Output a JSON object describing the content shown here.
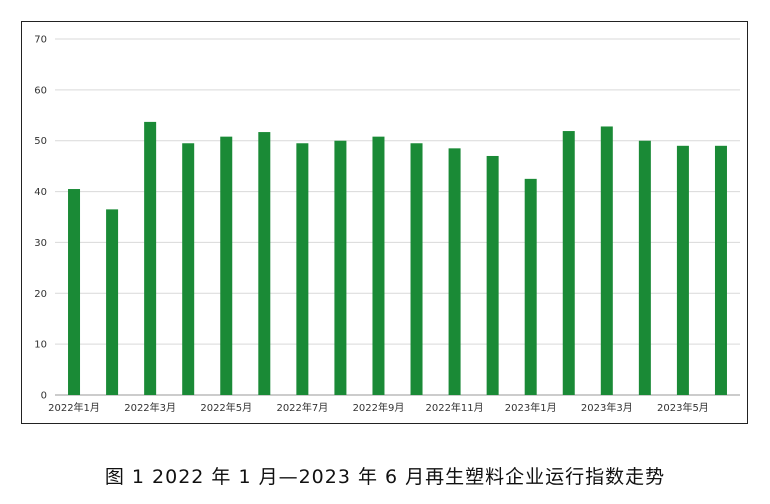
{
  "chart_data": {
    "type": "bar",
    "categories": [
      "2022年1月",
      "2022年2月",
      "2022年3月",
      "2022年4月",
      "2022年5月",
      "2022年6月",
      "2022年7月",
      "2022年8月",
      "2022年9月",
      "2022年10月",
      "2022年11月",
      "2022年12月",
      "2023年1月",
      "2023年2月",
      "2023年3月",
      "2023年4月",
      "2023年5月",
      "2023年6月"
    ],
    "values": [
      40.5,
      36.5,
      53.7,
      49.5,
      50.8,
      51.7,
      49.5,
      50.0,
      50.8,
      49.5,
      48.5,
      47.0,
      42.5,
      51.9,
      52.8,
      50.0,
      49.0,
      49.0
    ],
    "xtick_labels": [
      "2022年1月",
      "2022年3月",
      "2022年5月",
      "2022年7月",
      "2022年9月",
      "2022年11月",
      "2023年1月",
      "2023年3月",
      "2023年5月"
    ],
    "yticks": [
      "0",
      "10",
      "20",
      "30",
      "40",
      "50",
      "60",
      "70"
    ],
    "ylim": [
      0,
      70
    ],
    "grid": true,
    "title": "",
    "xlabel": "",
    "ylabel": "",
    "bar_color": "#1a8a36",
    "grid_color": "#d9d9d9"
  },
  "caption": "图 1  2022 年 1 月—2023 年 6 月再生塑料企业运行指数走势"
}
